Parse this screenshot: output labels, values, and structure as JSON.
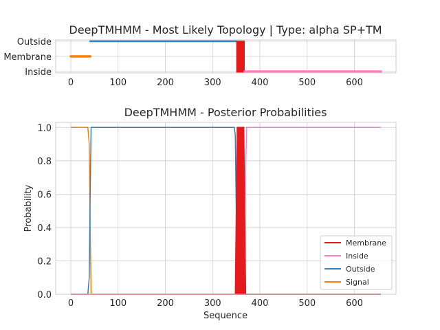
{
  "colors": {
    "membrane": "#e41a1c",
    "inside": "#f781bf",
    "outside": "#377eb8",
    "signal": "#ff7f00"
  },
  "chart_data": [
    {
      "type": "line",
      "title": "DeepTMHMM - Most Likely Topology | Type: alpha SP+TM",
      "xlabel": "",
      "ylabel": "",
      "xlim": [
        -32,
        688
      ],
      "x_ticks": [
        0,
        100,
        200,
        300,
        400,
        500,
        600
      ],
      "y_categories": [
        "Inside",
        "Membrane",
        "Outside"
      ],
      "grid": true,
      "segments": [
        {
          "state": "Signal",
          "level": "Membrane",
          "start": 0,
          "end": 41
        },
        {
          "state": "Outside",
          "level": "Outside",
          "start": 41,
          "end": 350
        },
        {
          "state": "Membrane",
          "level": "block",
          "start": 350,
          "end": 368
        },
        {
          "state": "Inside",
          "level": "Inside",
          "start": 368,
          "end": 656
        }
      ]
    },
    {
      "type": "line",
      "title": "DeepTMHMM - Posterior Probabilities",
      "xlabel": "Sequence",
      "ylabel": "Probability",
      "xlim": [
        -32,
        688
      ],
      "ylim": [
        0,
        1.03
      ],
      "x_ticks": [
        0,
        100,
        200,
        300,
        400,
        500,
        600
      ],
      "y_ticks": [
        0.0,
        0.2,
        0.4,
        0.6,
        0.8,
        1.0
      ],
      "y_tick_labels": [
        "0.0",
        "0.2",
        "0.4",
        "0.6",
        "0.8",
        "1.0"
      ],
      "grid": true,
      "legend_position": "bottom-right",
      "series": [
        {
          "name": "Membrane",
          "color_key": "membrane",
          "x": [
            0,
            348,
            350,
            352,
            366,
            368,
            370,
            656
          ],
          "y": [
            0,
            0,
            0.5,
            1,
            1,
            0.5,
            0,
            0
          ]
        },
        {
          "name": "Inside",
          "color_key": "inside",
          "x": [
            0,
            366,
            368,
            372,
            656
          ],
          "y": [
            0,
            0,
            0.5,
            1,
            1
          ]
        },
        {
          "name": "Outside",
          "color_key": "outside",
          "x": [
            0,
            36,
            39,
            41,
            43,
            346,
            348,
            350,
            352,
            656
          ],
          "y": [
            0,
            0,
            0.1,
            0.6,
            1,
            1,
            0.95,
            0.5,
            0,
            0
          ]
        },
        {
          "name": "Signal",
          "color_key": "signal",
          "x": [
            0,
            36,
            39,
            41,
            43,
            656
          ],
          "y": [
            1,
            1,
            0.9,
            0.4,
            0,
            0
          ]
        }
      ]
    }
  ]
}
